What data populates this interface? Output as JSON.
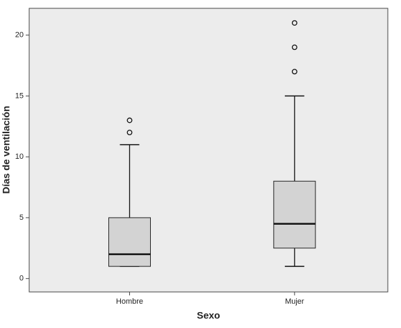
{
  "chart_data": {
    "type": "box",
    "x_label": "Sexo",
    "y_label": "Días de ventilación",
    "categories": [
      "Hombre",
      "Mujer"
    ],
    "boxes": [
      {
        "min": 1,
        "q1": 1,
        "median": 2,
        "q3": 5,
        "max": 11,
        "outliers": [
          12,
          13
        ]
      },
      {
        "min": 1,
        "q1": 2.5,
        "median": 4.5,
        "q3": 8,
        "max": 15,
        "outliers": [
          17,
          19,
          21
        ]
      }
    ],
    "color": "#d3d3d3",
    "background": "#ececec",
    "ylim": [
      -1.1,
      22.2
    ],
    "yticks": [
      0,
      5,
      10,
      15,
      20
    ],
    "grid": false
  }
}
